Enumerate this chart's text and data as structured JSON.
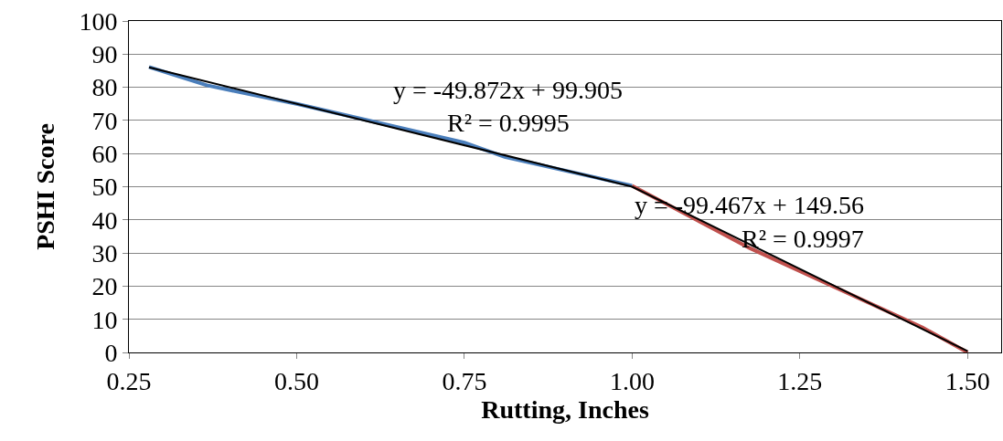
{
  "chart_data": {
    "type": "line",
    "xlabel": "Rutting, Inches",
    "ylabel": "PSHI Score",
    "xlim": [
      0.25,
      1.55
    ],
    "xticks": [
      {
        "value": 0.25,
        "label": "0.25"
      },
      {
        "value": 0.5,
        "label": "0.50"
      },
      {
        "value": 0.75,
        "label": "0.75"
      },
      {
        "value": 1,
        "label": "1.00"
      },
      {
        "value": 1.25,
        "label": "1.25"
      },
      {
        "value": 1.5,
        "label": "1.50"
      }
    ],
    "ylim": [
      0,
      100
    ],
    "yticks": [
      0,
      10,
      20,
      30,
      40,
      50,
      60,
      70,
      80,
      90,
      100
    ],
    "grid": "y",
    "marker": "none",
    "line_style": "solid",
    "series": [
      {
        "color": "#4a7ebb",
        "x": [
          0.28,
          0.366,
          0.5,
          0.75,
          0.81,
          1.0
        ],
        "values": [
          86.1,
          80.6,
          75,
          63.3,
          59,
          50.3
        ]
      },
      {
        "color": "#c0504d",
        "x": [
          1.0,
          1.175,
          1.433,
          1.5
        ],
        "values": [
          50.3,
          31.5,
          7.5,
          0
        ]
      },
      {
        "color": "#000000",
        "x": [
          0.28,
          1.0,
          1.5
        ],
        "values": [
          86,
          50,
          0.4
        ]
      }
    ],
    "annotations": [
      "y = -49.872x + 99.905",
      "R² = 0.9995",
      "y = -99.467x + 149.56",
      "R² = 0.9997"
    ]
  }
}
